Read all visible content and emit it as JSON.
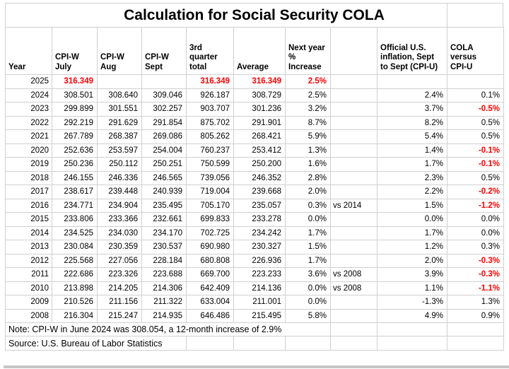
{
  "title": "Calculation for Social Security COLA",
  "colors": {
    "accent_red": "#ff0000",
    "gridline": "#d0d0d0",
    "text": "#000000"
  },
  "columns": [
    {
      "key": "year",
      "label": "Year"
    },
    {
      "key": "july",
      "label": "CPI-W\nJuly"
    },
    {
      "key": "aug",
      "label": "CPI-W\nAug"
    },
    {
      "key": "sept",
      "label": "CPI-W\nSept"
    },
    {
      "key": "total",
      "label": "3rd\nquarter\ntotal"
    },
    {
      "key": "average",
      "label": "Average"
    },
    {
      "key": "increase",
      "label": "Next year\n% Increase"
    },
    {
      "key": "vs_note",
      "label": ""
    },
    {
      "key": "cpiu",
      "label": "Official U.S.\ninflation, Sept\nto Sept (CPI-U)"
    },
    {
      "key": "cola_vs_cpiu",
      "label": "COLA\nversus\nCPI-U"
    }
  ],
  "rows": [
    {
      "cells": [
        "2025",
        "316.349",
        "",
        "",
        "316.349",
        "316.349",
        "2.5%",
        "",
        "",
        ""
      ],
      "red": [
        1,
        4,
        5,
        6
      ]
    },
    {
      "cells": [
        "2024",
        "308.501",
        "308.640",
        "309.046",
        "926.187",
        "308.729",
        "2.5%",
        "",
        "2.4%",
        "0.1%"
      ],
      "red": []
    },
    {
      "cells": [
        "2023",
        "299.899",
        "301.551",
        "302.257",
        "903.707",
        "301.236",
        "3.2%",
        "",
        "3.7%",
        "-0.5%"
      ],
      "red": [
        9
      ]
    },
    {
      "cells": [
        "2022",
        "292.219",
        "291.629",
        "291.854",
        "875.702",
        "291.901",
        "8.7%",
        "",
        "8.2%",
        "0.5%"
      ],
      "red": []
    },
    {
      "cells": [
        "2021",
        "267.789",
        "268.387",
        "269.086",
        "805.262",
        "268.421",
        "5.9%",
        "",
        "5.4%",
        "0.5%"
      ],
      "red": []
    },
    {
      "cells": [
        "2020",
        "252.636",
        "253.597",
        "254.004",
        "760.237",
        "253.412",
        "1.3%",
        "",
        "1.4%",
        "-0.1%"
      ],
      "red": [
        9
      ]
    },
    {
      "cells": [
        "2019",
        "250.236",
        "250.112",
        "250.251",
        "750.599",
        "250.200",
        "1.6%",
        "",
        "1.7%",
        "-0.1%"
      ],
      "red": [
        9
      ]
    },
    {
      "cells": [
        "2018",
        "246.155",
        "246.336",
        "246.565",
        "739.056",
        "246.352",
        "2.8%",
        "",
        "2.3%",
        "0.5%"
      ],
      "red": []
    },
    {
      "cells": [
        "2017",
        "238.617",
        "239.448",
        "240.939",
        "719.004",
        "239.668",
        "2.0%",
        "",
        "2.2%",
        "-0.2%"
      ],
      "red": [
        9
      ]
    },
    {
      "cells": [
        "2016",
        "234.771",
        "234.904",
        "235.495",
        "705.170",
        "235.057",
        "0.3%",
        "vs 2014",
        "1.5%",
        "-1.2%"
      ],
      "red": [
        9
      ]
    },
    {
      "cells": [
        "2015",
        "233.806",
        "233.366",
        "232.661",
        "699.833",
        "233.278",
        "0.0%",
        "",
        "0.0%",
        "0.0%"
      ],
      "red": []
    },
    {
      "cells": [
        "2014",
        "234.525",
        "234.030",
        "234.170",
        "702.725",
        "234.242",
        "1.7%",
        "",
        "1.7%",
        "0.0%"
      ],
      "red": []
    },
    {
      "cells": [
        "2013",
        "230.084",
        "230.359",
        "230.537",
        "690.980",
        "230.327",
        "1.5%",
        "",
        "1.2%",
        "0.3%"
      ],
      "red": []
    },
    {
      "cells": [
        "2012",
        "225.568",
        "227.056",
        "228.184",
        "680.808",
        "226.936",
        "1.7%",
        "",
        "2.0%",
        "-0.3%"
      ],
      "red": [
        9
      ]
    },
    {
      "cells": [
        "2011",
        "222.686",
        "223.326",
        "223.688",
        "669.700",
        "223.233",
        "3.6%",
        "vs 2008",
        "3.9%",
        "-0.3%"
      ],
      "red": [
        9
      ]
    },
    {
      "cells": [
        "2010",
        "213.898",
        "214.205",
        "214.306",
        "642.409",
        "214.136",
        "0.0%",
        "vs 2008",
        "1.1%",
        "-1.1%"
      ],
      "red": [
        9
      ]
    },
    {
      "cells": [
        "2009",
        "210.526",
        "211.156",
        "211.322",
        "633.004",
        "211.001",
        "0.0%",
        "",
        "-1.3%",
        "1.3%"
      ],
      "red": []
    },
    {
      "cells": [
        "2008",
        "216.304",
        "215.247",
        "214.935",
        "646.486",
        "215.495",
        "5.8%",
        "",
        "4.9%",
        "0.9%"
      ],
      "red": []
    }
  ],
  "footer": {
    "note": "Note: CPI-W in June 2024 was 308.054, a 12-month increase of 2.9%",
    "source": "Source: U.S. Bureau of Labor Statistics"
  }
}
